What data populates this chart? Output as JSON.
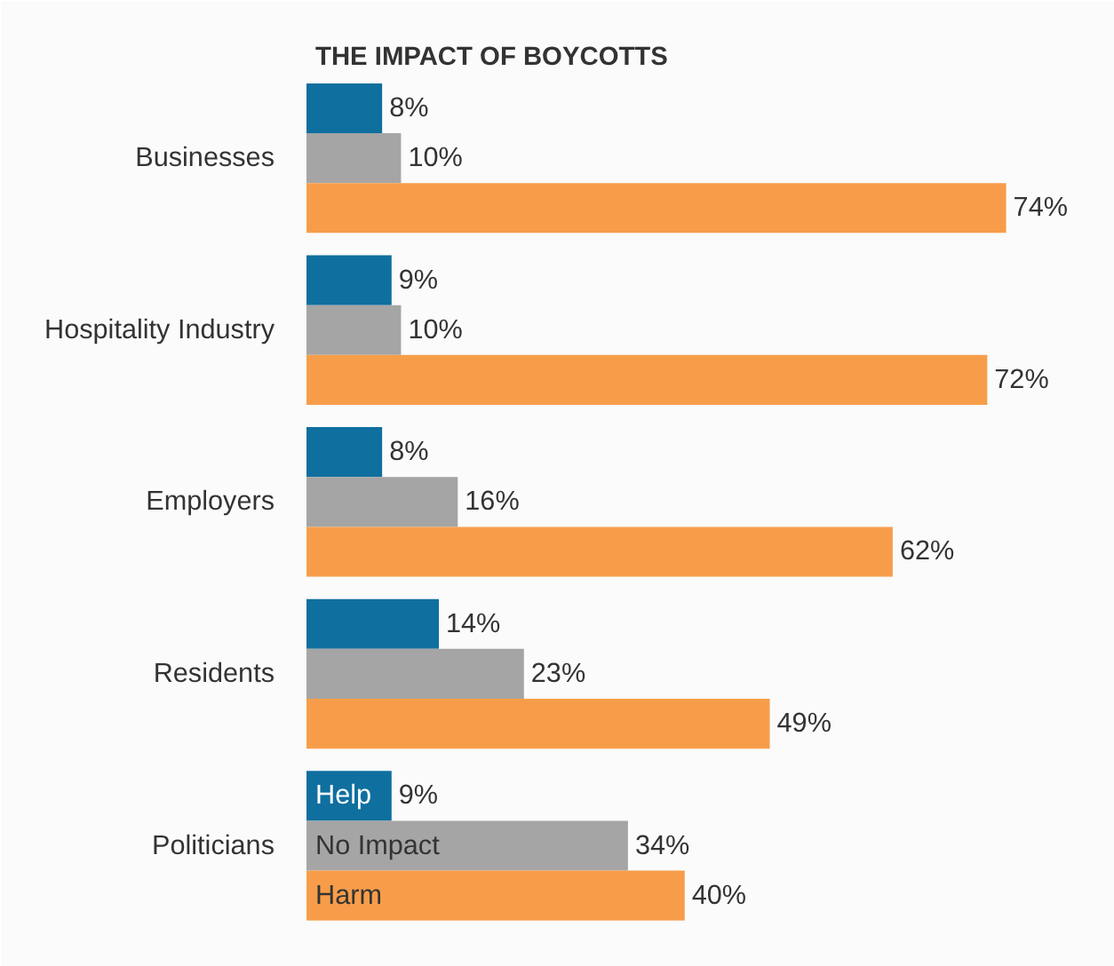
{
  "chart_data": {
    "type": "bar",
    "orientation": "horizontal",
    "title": "THE IMPACT OF BOYCOTTS",
    "categories": [
      "Businesses",
      "Hospitality Industry",
      "Employers",
      "Residents",
      "Politicians"
    ],
    "series": [
      {
        "name": "Help",
        "color": "#0f6f9f",
        "values": [
          8,
          9,
          8,
          14,
          9
        ],
        "value_labels": [
          "8%",
          "9%",
          "8%",
          "14%",
          "9%"
        ]
      },
      {
        "name": "No Impact",
        "color": "#a5a5a5",
        "values": [
          10,
          10,
          16,
          23,
          34
        ],
        "value_labels": [
          "10%",
          "10%",
          "16%",
          "23%",
          "34%"
        ]
      },
      {
        "name": "Harm",
        "color": "#f79d4a",
        "values": [
          74,
          72,
          62,
          49,
          40
        ],
        "value_labels": [
          "74%",
          "72%",
          "62%",
          "49%",
          "40%"
        ]
      }
    ],
    "legend": false
  }
}
